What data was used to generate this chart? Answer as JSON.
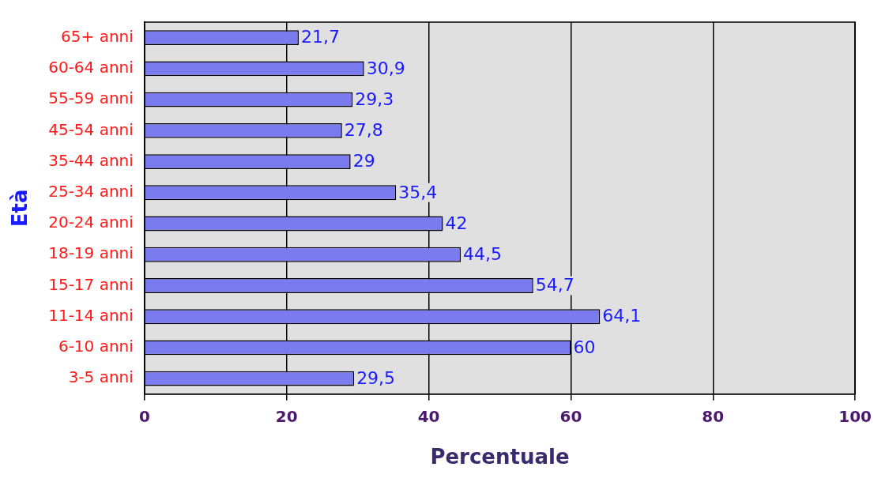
{
  "chart_data": {
    "type": "bar",
    "orientation": "horizontal",
    "xlabel": "Percentuale",
    "ylabel": "Età",
    "categories": [
      "65+ anni",
      "60-64 anni",
      "55-59 anni",
      "45-54 anni",
      "35-44 anni",
      "25-34 anni",
      "20-24 anni",
      "18-19 anni",
      "15-17 anni",
      "11-14 anni",
      "6-10 anni",
      "3-5 anni"
    ],
    "values": [
      21.7,
      30.9,
      29.3,
      27.8,
      29,
      35.4,
      42,
      44.5,
      54.7,
      64.1,
      60,
      29.5
    ],
    "value_labels": [
      "21,7",
      "30,9",
      "29,3",
      "27,8",
      "29",
      "35,4",
      "42",
      "44,5",
      "54,7",
      "64,1",
      "60",
      "29,5"
    ],
    "color": "#7b7bf0",
    "xlim": [
      0,
      100
    ],
    "xticks": [
      0,
      20,
      40,
      60,
      80,
      100
    ],
    "grid": "x",
    "legend": false
  }
}
